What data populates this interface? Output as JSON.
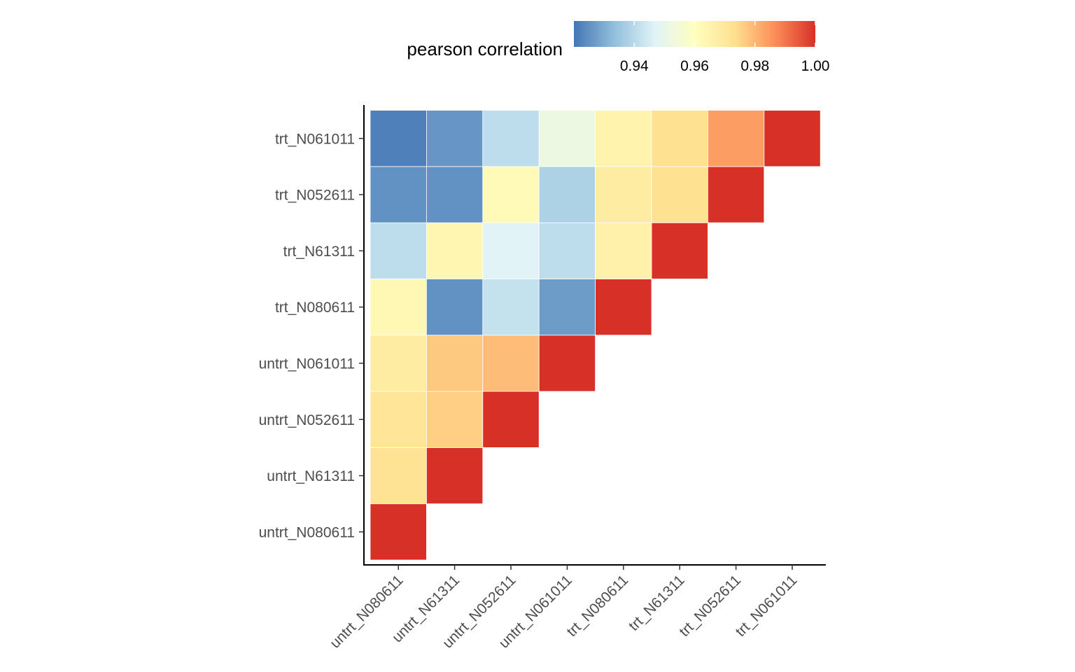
{
  "chart_data": {
    "type": "heatmap",
    "title": "",
    "xlabel": "",
    "ylabel": "",
    "legend": {
      "title": "pearson correlation",
      "placement": "top",
      "range": [
        0.92,
        1.0
      ],
      "ticks": [
        "0.94",
        "0.96",
        "0.98",
        "1.00"
      ],
      "colors": [
        "#4575b4",
        "#91bfdb",
        "#e0f3f8",
        "#ffffbf",
        "#fee090",
        "#fc8d59",
        "#d73027"
      ]
    },
    "x_categories": [
      "untrt_N080611",
      "untrt_N61311",
      "untrt_N052611",
      "untrt_N061011",
      "trt_N080611",
      "trt_N61311",
      "trt_N052611",
      "trt_N061011"
    ],
    "y_categories": [
      "untrt_N080611",
      "untrt_N61311",
      "untrt_N052611",
      "untrt_N061011",
      "trt_N080611",
      "trt_N61311",
      "trt_N052611",
      "trt_N061011"
    ],
    "values": [
      [
        1.0,
        null,
        null,
        null,
        null,
        null,
        null,
        null
      ],
      [
        0.972,
        1.0,
        null,
        null,
        null,
        null,
        null,
        null
      ],
      [
        0.971,
        0.976,
        1.0,
        null,
        null,
        null,
        null,
        null
      ],
      [
        0.968,
        0.977,
        0.979,
        1.0,
        null,
        null,
        null,
        null
      ],
      [
        0.963,
        0.925,
        0.942,
        0.927,
        1.0,
        null,
        null,
        null
      ],
      [
        0.941,
        0.964,
        0.947,
        0.941,
        0.966,
        1.0,
        null,
        null
      ],
      [
        0.925,
        0.925,
        0.962,
        0.938,
        0.968,
        0.973,
        1.0,
        null
      ],
      [
        0.922,
        0.926,
        0.941,
        0.952,
        0.965,
        0.973,
        0.984,
        1.0
      ]
    ],
    "grid": false
  }
}
